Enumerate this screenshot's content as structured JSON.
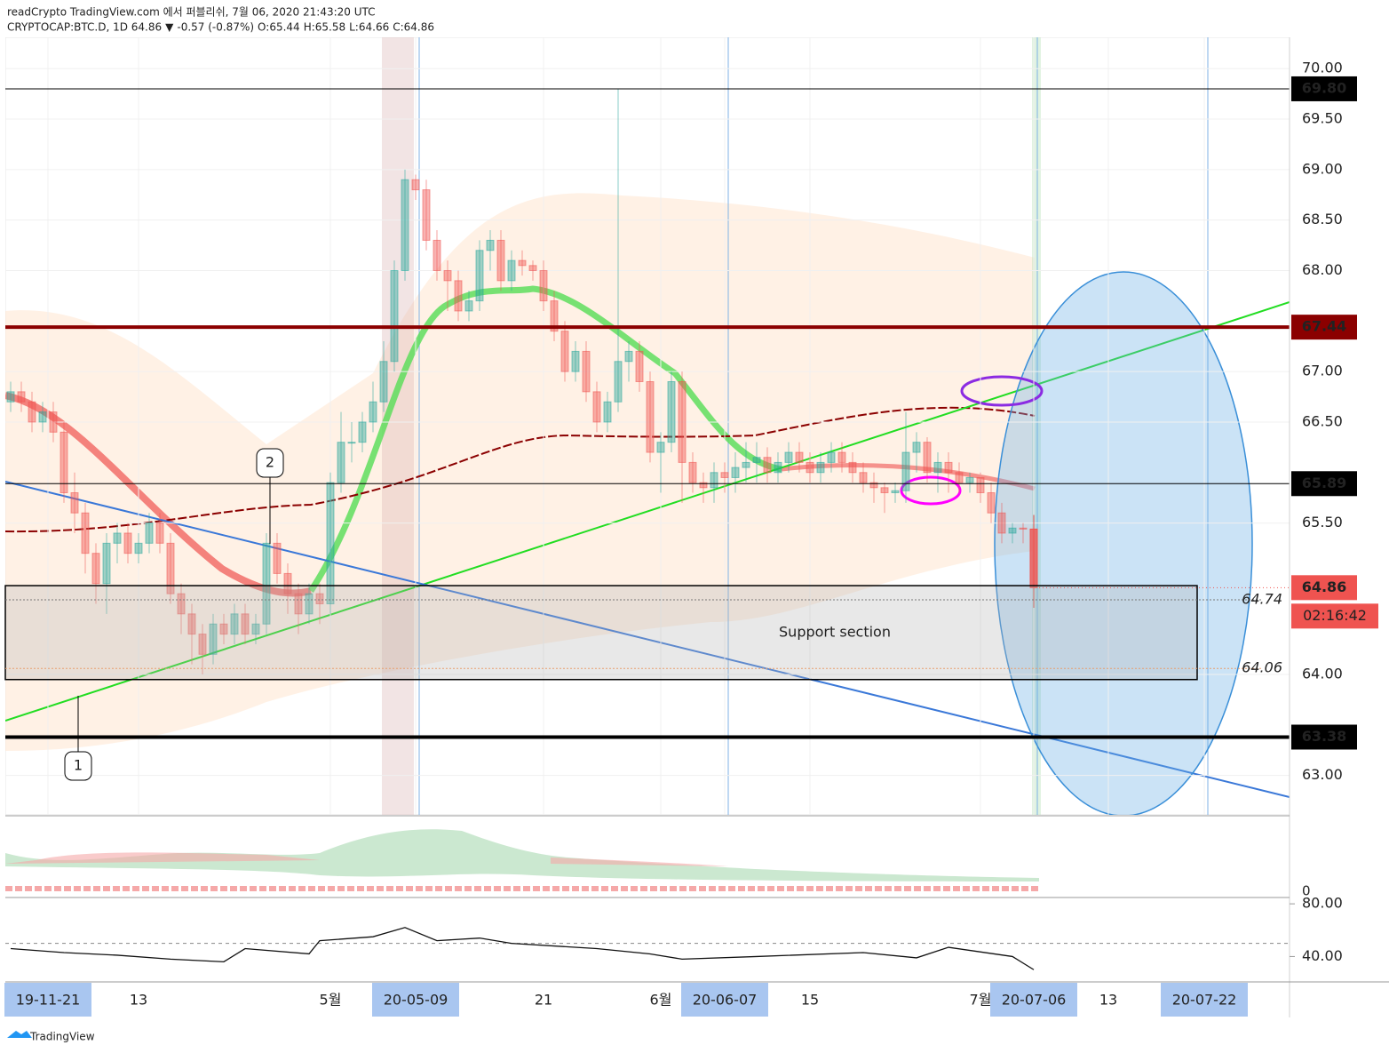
{
  "header": {
    "line1": "readCrypto TradingView.com 에서 퍼블리쉬, 7월 06, 2020 21:43:20 UTC",
    "symbol": "CRYPTOCAP:BTC.D, 1D 64.86",
    "arrow": "▼",
    "change": "-0.57 (-0.87%)",
    "ohlc": [
      {
        "label": "O:",
        "value": "65.44"
      },
      {
        "label": "H:",
        "value": "65.58"
      },
      {
        "label": "L:",
        "value": "64.66"
      },
      {
        "label": "C:",
        "value": "64.86"
      }
    ]
  },
  "chart_data": {
    "type": "candlestick",
    "up_color": "#26a69a",
    "down_color": "#ef5350",
    "candles": [
      [
        66.7,
        66.9,
        66.6,
        66.8
      ],
      [
        66.8,
        66.9,
        66.6,
        66.7
      ],
      [
        66.7,
        66.8,
        66.4,
        66.5
      ],
      [
        66.5,
        66.7,
        66.4,
        66.6
      ],
      [
        66.6,
        66.7,
        66.3,
        66.4
      ],
      [
        66.4,
        66.5,
        65.7,
        65.8
      ],
      [
        65.8,
        66.0,
        65.4,
        65.6
      ],
      [
        65.6,
        65.7,
        65.0,
        65.2
      ],
      [
        65.2,
        65.3,
        64.7,
        64.9
      ],
      [
        64.9,
        65.4,
        64.6,
        65.3
      ],
      [
        65.3,
        65.5,
        65.1,
        65.4
      ],
      [
        65.4,
        65.5,
        65.1,
        65.2
      ],
      [
        65.2,
        65.4,
        65.1,
        65.3
      ],
      [
        65.3,
        65.6,
        65.2,
        65.5
      ],
      [
        65.5,
        65.6,
        65.2,
        65.3
      ],
      [
        65.3,
        65.4,
        64.7,
        64.8
      ],
      [
        64.8,
        64.9,
        64.4,
        64.6
      ],
      [
        64.6,
        64.7,
        64.1,
        64.4
      ],
      [
        64.4,
        64.5,
        64.0,
        64.2
      ],
      [
        64.2,
        64.6,
        64.1,
        64.5
      ],
      [
        64.5,
        64.6,
        64.3,
        64.4
      ],
      [
        64.4,
        64.7,
        64.3,
        64.6
      ],
      [
        64.6,
        64.7,
        64.3,
        64.4
      ],
      [
        64.4,
        64.6,
        64.3,
        64.5
      ],
      [
        64.5,
        65.4,
        64.4,
        65.3
      ],
      [
        65.3,
        65.4,
        64.9,
        65.0
      ],
      [
        65.0,
        65.1,
        64.6,
        64.8
      ],
      [
        64.8,
        64.9,
        64.4,
        64.6
      ],
      [
        64.6,
        64.9,
        64.5,
        64.8
      ],
      [
        64.8,
        64.9,
        64.5,
        64.7
      ],
      [
        64.7,
        66.0,
        64.6,
        65.9
      ],
      [
        65.9,
        66.6,
        65.8,
        66.3
      ],
      [
        66.3,
        66.5,
        66.1,
        66.3
      ],
      [
        66.3,
        66.6,
        66.2,
        66.5
      ],
      [
        66.5,
        66.9,
        66.4,
        66.7
      ],
      [
        66.7,
        67.3,
        66.6,
        67.1
      ],
      [
        67.1,
        68.1,
        67.0,
        68.0
      ],
      [
        68.0,
        69.0,
        67.9,
        68.9
      ],
      [
        68.9,
        68.95,
        68.7,
        68.8
      ],
      [
        68.8,
        68.9,
        68.2,
        68.3
      ],
      [
        68.3,
        68.4,
        67.9,
        68.0
      ],
      [
        68.0,
        68.1,
        67.6,
        67.9
      ],
      [
        67.9,
        68.0,
        67.5,
        67.6
      ],
      [
        67.6,
        67.8,
        67.5,
        67.7
      ],
      [
        67.7,
        68.3,
        67.6,
        68.2
      ],
      [
        68.2,
        68.4,
        68.0,
        68.3
      ],
      [
        68.3,
        68.4,
        67.8,
        67.9
      ],
      [
        67.9,
        68.2,
        67.8,
        68.1
      ],
      [
        68.1,
        68.2,
        67.95,
        68.05
      ],
      [
        68.05,
        68.1,
        67.9,
        68.0
      ],
      [
        68.0,
        68.1,
        67.6,
        67.7
      ],
      [
        67.7,
        67.8,
        67.3,
        67.4
      ],
      [
        67.4,
        67.5,
        66.9,
        67.0
      ],
      [
        67.0,
        67.3,
        66.9,
        67.2
      ],
      [
        67.2,
        67.3,
        66.7,
        66.8
      ],
      [
        66.8,
        66.9,
        66.4,
        66.5
      ],
      [
        66.5,
        66.8,
        66.4,
        66.7
      ],
      [
        66.7,
        69.8,
        66.6,
        67.1
      ],
      [
        67.1,
        67.3,
        66.9,
        67.2
      ],
      [
        67.2,
        67.3,
        66.8,
        66.9
      ],
      [
        66.9,
        67.0,
        66.1,
        66.2
      ],
      [
        66.2,
        66.4,
        65.8,
        66.3
      ],
      [
        66.3,
        67.0,
        66.2,
        66.9
      ],
      [
        66.9,
        67.0,
        65.7,
        66.1
      ],
      [
        66.1,
        66.2,
        65.8,
        65.9
      ],
      [
        65.9,
        66.0,
        65.7,
        65.85
      ],
      [
        65.85,
        66.1,
        65.7,
        66.0
      ],
      [
        66.0,
        66.1,
        65.8,
        65.95
      ],
      [
        65.95,
        66.2,
        65.8,
        66.05
      ],
      [
        66.05,
        66.3,
        65.9,
        66.1
      ],
      [
        66.1,
        66.3,
        65.9,
        66.15
      ],
      [
        66.15,
        66.25,
        65.9,
        66.0
      ],
      [
        66.0,
        66.2,
        65.9,
        66.1
      ],
      [
        66.1,
        66.3,
        66.0,
        66.2
      ],
      [
        66.2,
        66.3,
        66.0,
        66.1
      ],
      [
        66.1,
        66.2,
        65.9,
        66.0
      ],
      [
        66.0,
        66.2,
        65.9,
        66.1
      ],
      [
        66.1,
        66.3,
        66.0,
        66.2
      ],
      [
        66.2,
        66.3,
        66.0,
        66.1
      ],
      [
        66.1,
        66.2,
        65.9,
        66.0
      ],
      [
        66.0,
        66.1,
        65.8,
        65.9
      ],
      [
        65.9,
        66.0,
        65.7,
        65.85
      ],
      [
        65.85,
        65.9,
        65.6,
        65.8
      ],
      [
        65.8,
        65.9,
        65.7,
        65.82
      ],
      [
        65.82,
        66.6,
        65.7,
        66.2
      ],
      [
        66.2,
        66.4,
        66.0,
        66.3
      ],
      [
        66.3,
        66.35,
        65.9,
        66.0
      ],
      [
        66.0,
        66.2,
        65.8,
        66.1
      ],
      [
        66.1,
        66.2,
        65.8,
        66.0
      ],
      [
        66.0,
        66.1,
        65.8,
        65.9
      ],
      [
        65.9,
        66.0,
        65.8,
        65.95
      ],
      [
        65.95,
        66.0,
        65.7,
        65.8
      ],
      [
        65.8,
        65.9,
        65.5,
        65.6
      ],
      [
        65.6,
        65.7,
        65.3,
        65.4
      ],
      [
        65.4,
        65.5,
        65.3,
        65.45
      ],
      [
        65.45,
        65.5,
        65.3,
        65.44
      ],
      [
        65.44,
        65.58,
        64.66,
        64.86
      ]
    ],
    "xlim": [
      -0.5,
      120
    ],
    "ylim": [
      62.61,
      70.31
    ],
    "yticks": [
      {
        "value": 70,
        "label": "70.00"
      },
      {
        "value": 69.5,
        "label": "69.50"
      },
      {
        "value": 69,
        "label": "69.00"
      },
      {
        "value": 68.5,
        "label": "68.50"
      },
      {
        "value": 68,
        "label": "68.00"
      },
      {
        "value": 67,
        "label": "67.00"
      },
      {
        "value": 66.5,
        "label": "66.50"
      },
      {
        "value": 65.5,
        "label": "65.50"
      },
      {
        "value": 64,
        "label": "64.00"
      },
      {
        "value": 63,
        "label": "63.00"
      }
    ],
    "xticks": [
      {
        "value": 3.5,
        "label": "19-11-21",
        "boxed": true
      },
      {
        "value": 12,
        "label": "13"
      },
      {
        "value": 30,
        "label": "5월"
      },
      {
        "value": 38,
        "label": "20-05-09",
        "boxed": true
      },
      {
        "value": 50,
        "label": "21"
      },
      {
        "value": 61,
        "label": "6월"
      },
      {
        "value": 67,
        "label": "20-06-07",
        "boxed": true
      },
      {
        "value": 75,
        "label": "15"
      },
      {
        "value": 91,
        "label": "7월"
      },
      {
        "value": 96,
        "label": "20-07-06",
        "boxed": true
      },
      {
        "value": 103,
        "label": "13"
      },
      {
        "value": 112,
        "label": "20-07-22",
        "boxed": true
      }
    ],
    "levels": [
      {
        "value": 69.8,
        "label": "69.80",
        "color": "#000000"
      },
      {
        "value": 67.44,
        "label": "67.44",
        "color": "#8b0000"
      },
      {
        "value": 65.89,
        "label": "65.89",
        "color": "#000000"
      },
      {
        "value": 63.38,
        "label": "63.38",
        "color": "#000000"
      }
    ],
    "last_price": {
      "value": 64.86,
      "label": "64.86",
      "color": "#ef5350"
    },
    "countdown": "02:16:42",
    "support": {
      "top": 64.88,
      "bottom": 63.95,
      "label": "Support section",
      "marks": [
        {
          "value": 64.74,
          "label": "64.74"
        },
        {
          "value": 64.06,
          "label": "64.06"
        }
      ]
    },
    "annotations": [
      "1",
      "2"
    ],
    "oscillator": {
      "ytick": "0"
    },
    "rsi": {
      "ylim": [
        21.4,
        84.8
      ],
      "yticks": [
        {
          "value": 80,
          "label": "80.00"
        },
        {
          "value": 40,
          "label": "40.00"
        }
      ],
      "midline": 50,
      "x": [
        0,
        5,
        10,
        15,
        20,
        22,
        28,
        29,
        34,
        37,
        40,
        44,
        47,
        55,
        60,
        63,
        70,
        80,
        85,
        88,
        94,
        96
      ],
      "values": [
        46,
        43,
        41,
        38,
        36,
        46,
        42,
        52,
        55,
        62,
        52,
        54,
        50,
        46,
        42,
        38,
        40,
        43,
        39,
        47,
        40,
        30
      ]
    },
    "footer": "TradingView"
  }
}
